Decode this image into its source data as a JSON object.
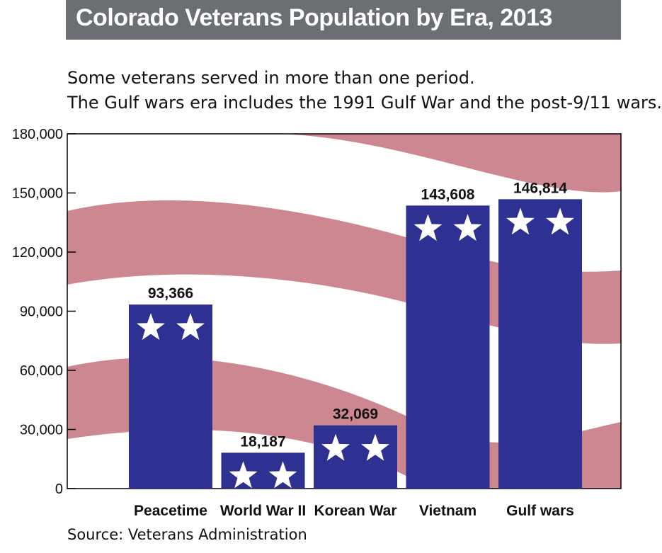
{
  "title": "Colorado Veterans Population by Era, 2013",
  "subtitle_lines": [
    "Some veterans served in more than one period.",
    "The Gulf wars era includes the 1991 Gulf War and the post-9/11 wars."
  ],
  "source": "Source: Veterans Administration",
  "colors": {
    "bar": "#2e3191",
    "stripe": "#cd8791",
    "star": "#ffffff",
    "title_bar": "#6b6e73"
  },
  "chart_data": {
    "type": "bar",
    "title": "Colorado Veterans Population by Era, 2013",
    "categories": [
      "Peacetime",
      "World War II",
      "Korean War",
      "Vietnam",
      "Gulf wars"
    ],
    "values": [
      93366,
      18187,
      32069,
      143608,
      146814
    ],
    "value_labels": [
      "93,366",
      "18,187",
      "32,069",
      "143,608",
      "146,814"
    ],
    "ylim": [
      0,
      180000
    ],
    "yticks": [
      0,
      30000,
      60000,
      90000,
      120000,
      150000,
      180000
    ],
    "ytick_labels": [
      "0",
      "30,000",
      "60,000",
      "90,000",
      "120,000",
      "150,000",
      "180,000"
    ],
    "xlabel": "",
    "ylabel": "",
    "grid": false,
    "legend": "none",
    "bar_decoration": "two white stars per bar"
  }
}
